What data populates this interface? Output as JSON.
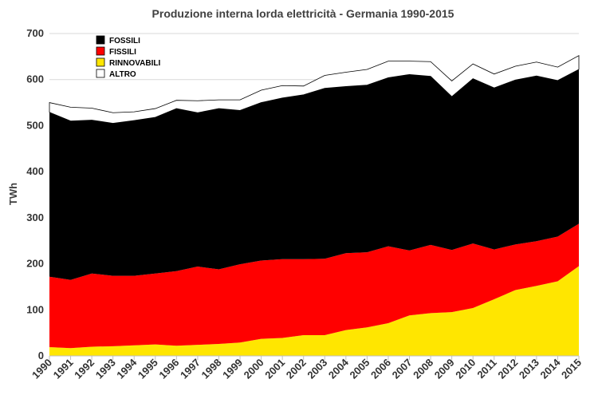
{
  "chart_data": {
    "type": "area",
    "stacked": true,
    "title": "Produzione interna lorda elettricità - Germania 1990-2015",
    "xlabel": "",
    "ylabel": "TWh",
    "ylim": [
      0,
      700
    ],
    "yticks": [
      0,
      100,
      200,
      300,
      400,
      500,
      600,
      700
    ],
    "grid": true,
    "legend_position": "top-left",
    "x": [
      "1990",
      "1991",
      "1992",
      "1993",
      "1994",
      "1995",
      "1996",
      "1997",
      "1998",
      "1999",
      "2000",
      "2001",
      "2002",
      "2003",
      "2004",
      "2005",
      "2006",
      "2007",
      "2008",
      "2009",
      "2010",
      "2011",
      "2012",
      "2013",
      "2014",
      "2015"
    ],
    "series": [
      {
        "name": "RINNOVABILI",
        "color": "#ffe600",
        "values": [
          19,
          17,
          20,
          21,
          23,
          25,
          22,
          24,
          26,
          29,
          37,
          39,
          45,
          45,
          56,
          62,
          71,
          88,
          93,
          95,
          104,
          123,
          143,
          152,
          162,
          195
        ]
      },
      {
        "name": "FISSILI",
        "color": "#ff0000",
        "values": [
          153,
          148,
          159,
          153,
          151,
          154,
          162,
          170,
          162,
          170,
          170,
          171,
          165,
          166,
          167,
          163,
          167,
          141,
          148,
          135,
          140,
          108,
          99,
          97,
          97,
          92
        ]
      },
      {
        "name": "FOSSILI",
        "color": "#000000",
        "values": [
          357,
          345,
          333,
          331,
          337,
          339,
          353,
          334,
          349,
          334,
          343,
          350,
          357,
          370,
          362,
          363,
          366,
          382,
          366,
          333,
          358,
          351,
          357,
          359,
          339,
          335
        ]
      },
      {
        "name": "ALTRO",
        "color": "#ffffff",
        "values": [
          21,
          30,
          26,
          23,
          19,
          19,
          18,
          26,
          19,
          23,
          27,
          27,
          19,
          28,
          31,
          34,
          36,
          29,
          32,
          34,
          32,
          30,
          30,
          30,
          29,
          30
        ]
      }
    ]
  }
}
